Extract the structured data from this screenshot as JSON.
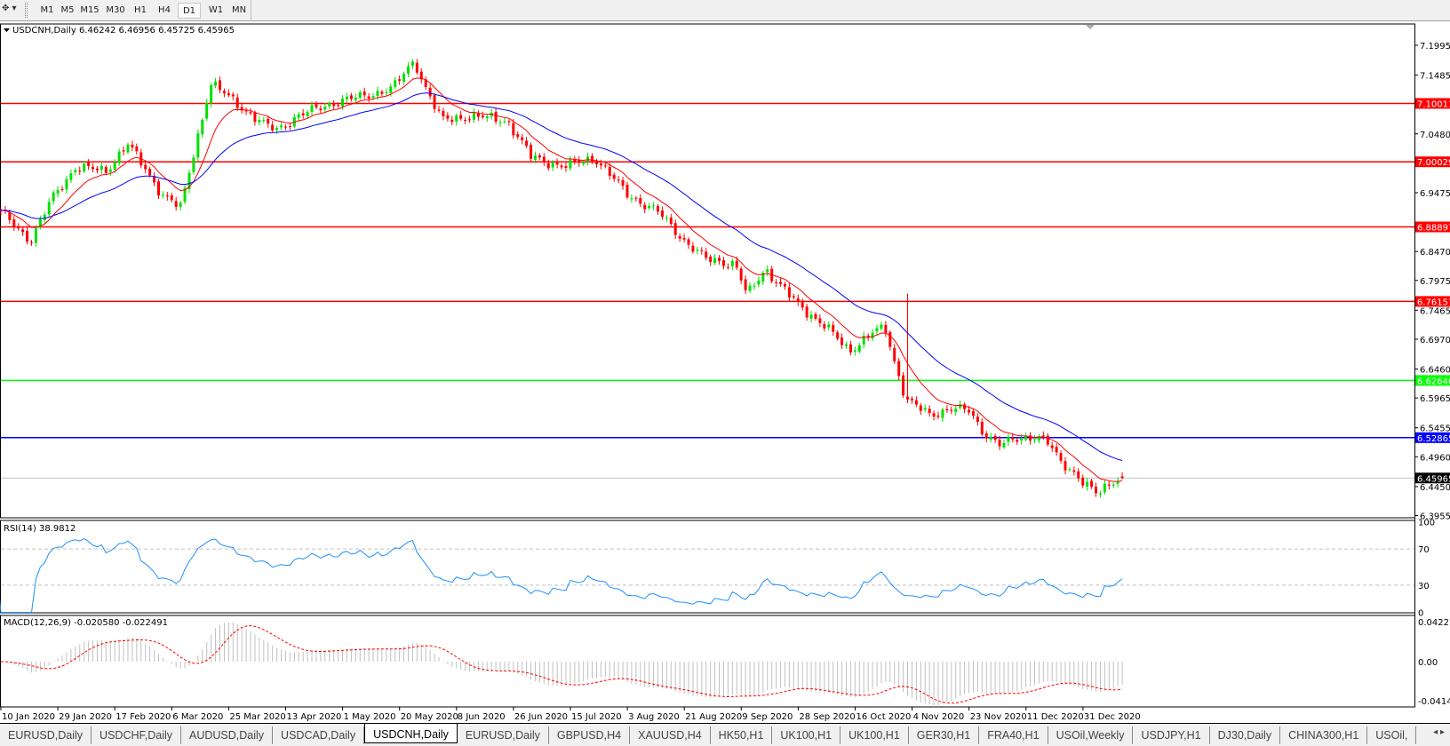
{
  "toolbar": {
    "timeframes": [
      "M1",
      "M5",
      "M15",
      "M30",
      "H1",
      "H4",
      "D1",
      "W1",
      "MN"
    ],
    "active_timeframe": "D1"
  },
  "chart": {
    "symbol": "USDCNH,Daily",
    "open": "6.46242",
    "high": "6.46956",
    "low": "6.45725",
    "close": "6.45965",
    "colors": {
      "bull": "#00e000",
      "bear": "#ff0000",
      "ma_fast": "#ff0000",
      "ma_slow": "#0000ff",
      "rsi": "#1e90ff",
      "macd_hist": "#c0c0c0",
      "macd_signal": "#ff0000"
    },
    "price_axis": [
      "7.19950",
      "7.14850",
      "7.04800",
      "6.94750",
      "6.84700",
      "6.79750",
      "6.74650",
      "6.69700",
      "6.64600",
      "6.59650",
      "6.54550",
      "6.49600",
      "6.44500",
      "6.39550"
    ],
    "price_range": [
      6.3955,
      7.1995
    ],
    "levels": [
      {
        "price": "7.10011",
        "color": "#ff0000"
      },
      {
        "price": "7.00029",
        "color": "#ff0000"
      },
      {
        "price": "6.88897",
        "color": "#ff0000"
      },
      {
        "price": "6.76157",
        "color": "#ff0000"
      },
      {
        "price": "6.62646",
        "color": "#00ff00"
      },
      {
        "price": "6.52865",
        "color": "#0000ff"
      }
    ],
    "current_price": {
      "price": "6.45965",
      "color": "#000000"
    },
    "date_axis": [
      "10 Jan 2020",
      "29 Jan 2020",
      "17 Feb 2020",
      "6 Mar 2020",
      "25 Mar 2020",
      "13 Apr 2020",
      "1 May 2020",
      "20 May 2020",
      "8 Jun 2020",
      "26 Jun 2020",
      "15 Jul 2020",
      "3 Aug 2020",
      "21 Aug 2020",
      "9 Sep 2020",
      "28 Sep 2020",
      "16 Oct 2020",
      "4 Nov 2020",
      "23 Nov 2020",
      "11 Dec 2020",
      "31 Dec 2020"
    ],
    "close_path": [
      [
        "8 Jan 2020",
        6.925
      ],
      [
        "10 Jan 2020",
        6.913
      ],
      [
        "20 Jan 2020",
        6.866
      ],
      [
        "27 Jan 2020",
        6.937
      ],
      [
        "4 Feb 2020",
        6.992
      ],
      [
        "14 Feb 2020",
        6.984
      ],
      [
        "21 Feb 2020",
        7.032
      ],
      [
        "3 Mar 2020",
        6.945
      ],
      [
        "9 Mar 2020",
        6.921
      ],
      [
        "13 Mar 2020",
        7.008
      ],
      [
        "19 Mar 2020",
        7.135
      ],
      [
        "27 Mar 2020",
        7.103
      ],
      [
        "6 Apr 2020",
        7.063
      ],
      [
        "10 Apr 2020",
        7.055
      ],
      [
        "17 Apr 2020",
        7.079
      ],
      [
        "29 Apr 2020",
        7.103
      ],
      [
        "7 May 2020",
        7.111
      ],
      [
        "18 May 2020",
        7.127
      ],
      [
        "25 May 2020",
        7.174
      ],
      [
        "28 May 2020",
        7.135
      ],
      [
        "3 Jun 2020",
        7.071
      ],
      [
        "12 Jun 2020",
        7.079
      ],
      [
        "24 Jun 2020",
        7.071
      ],
      [
        "2 Jul 2020",
        7.008
      ],
      [
        "13 Jul 2020",
        6.992
      ],
      [
        "23 Jul 2020",
        7.008
      ],
      [
        "3 Aug 2020",
        6.945
      ],
      [
        "13 Aug 2020",
        6.913
      ],
      [
        "21 Aug 2020",
        6.866
      ],
      [
        "28 Aug 2020",
        6.834
      ],
      [
        "7 Sep 2020",
        6.826
      ],
      [
        "11 Sep 2020",
        6.771
      ],
      [
        "17 Sep 2020",
        6.818
      ],
      [
        "28 Sep 2020",
        6.755
      ],
      [
        "6 Oct 2020",
        6.723
      ],
      [
        "14 Oct 2020",
        6.676
      ],
      [
        "21 Oct 2020",
        6.707
      ],
      [
        "26 Oct 2020",
        6.715
      ],
      [
        "29 Oct 2020",
        6.66
      ],
      [
        "2 Nov 2020",
        6.596
      ],
      [
        "10 Nov 2020",
        6.565
      ],
      [
        "17 Nov 2020",
        6.581
      ],
      [
        "23 Nov 2020",
        6.573
      ],
      [
        "27 Nov 2020",
        6.541
      ],
      [
        "3 Dec 2020",
        6.517
      ],
      [
        "14 Dec 2020",
        6.533
      ],
      [
        "18 Dec 2020",
        6.525
      ],
      [
        "23 Dec 2020",
        6.486
      ],
      [
        "28 Dec 2020",
        6.47
      ],
      [
        "5 Jan 2021",
        6.43
      ],
      [
        "12 Jan 2021",
        6.46
      ]
    ]
  },
  "rsi": {
    "label": "RSI(14) 38.9812",
    "axis": [
      "100",
      "70",
      "30",
      "0"
    ]
  },
  "macd": {
    "label": "MACD(12,26,9) -0.020580 -0.022491",
    "axis": [
      "0.042275",
      "0.00",
      "-0.04148"
    ]
  },
  "tabs": [
    "EURUSD,Daily",
    "USDCHF,Daily",
    "AUDUSD,Daily",
    "USDCAD,Daily",
    "USDCNH,Daily",
    "EURUSD,Daily",
    "GBPUSD,H4",
    "XAUUSD,H4",
    "HK50,H1",
    "UK100,H1",
    "UK100,H1",
    "GER30,H1",
    "FRA40,H1",
    "USOil,Weekly",
    "USDJPY,H1",
    "DJ30,Daily",
    "CHINA300,H1",
    "USOil,"
  ],
  "active_tab": "USDCNH,Daily"
}
